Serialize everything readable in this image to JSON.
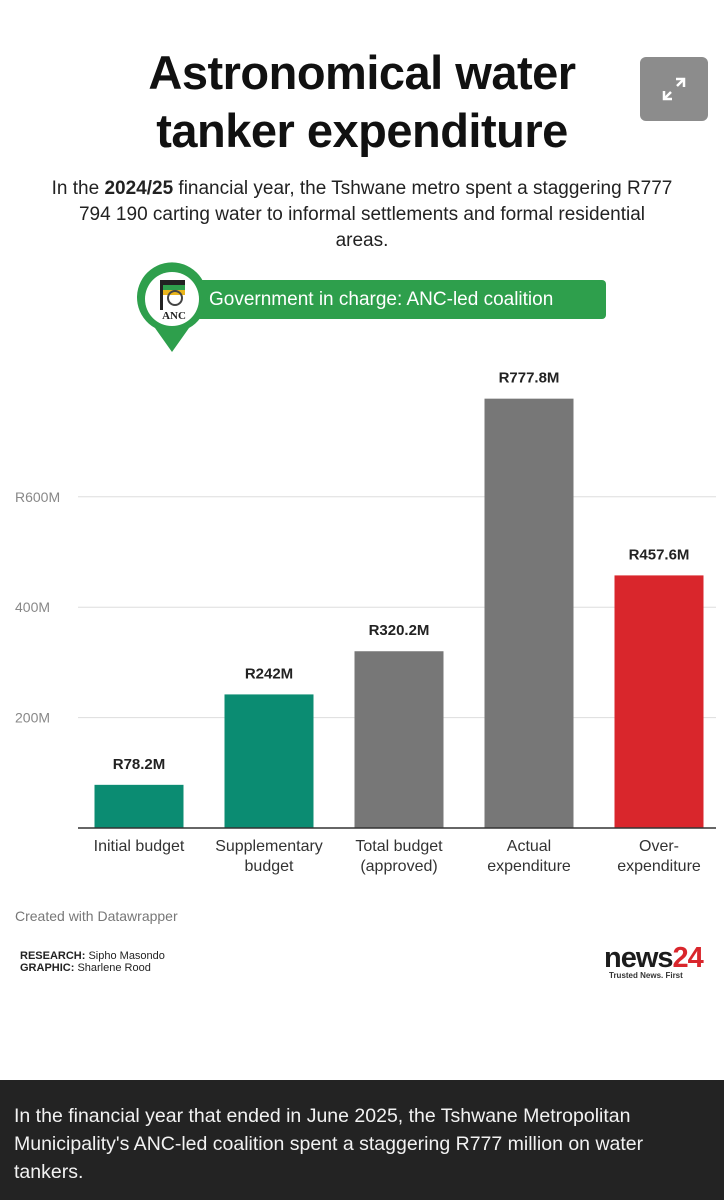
{
  "title_line1": "Astronomical water",
  "title_line2": "tanker expenditure",
  "subtitle": {
    "part1": "In the ",
    "bold": "2024/25",
    "part2": " financial year, the Tshwane metro spent a staggering R777 794 190 carting water to informal settlements and formal residential areas."
  },
  "government_label": "Government in charge: ANC-led coalition",
  "party_logo_text": "ANC",
  "icons": {
    "expand": "expand-arrows-icon",
    "party": "anc-logo-pin-icon"
  },
  "colors": {
    "green": "#0b8c72",
    "gray": "#777777",
    "red": "#d9262c",
    "pill_green": "#2e9f4c"
  },
  "chart_data": {
    "type": "bar",
    "categories": [
      [
        "Initial budget"
      ],
      [
        "Supplementary",
        "budget"
      ],
      [
        "Total budget",
        "(approved)"
      ],
      [
        "Actual",
        "expenditure"
      ],
      [
        "Over-",
        "expenditure"
      ]
    ],
    "values": [
      78.2,
      242,
      320.2,
      777.8,
      457.6
    ],
    "value_labels": [
      "R78.2M",
      "R242M",
      "R320.2M",
      "R777.8M",
      "R457.6M"
    ],
    "bar_colors": [
      "#0b8c72",
      "#0b8c72",
      "#777777",
      "#777777",
      "#d9262c"
    ],
    "yticks": [
      200,
      400,
      600
    ],
    "ytick_labels": [
      "200M",
      "400M",
      "R600M"
    ],
    "ylim": [
      0,
      800
    ],
    "grid": true
  },
  "credit": "Created with Datawrapper",
  "research_label": "RESEARCH:",
  "research_name": " Sipho Masondo",
  "graphic_label": "GRAPHIC:",
  "graphic_name": " Sharlene Rood",
  "logo": {
    "word": "news",
    "number": "24",
    "tagline": "Trusted News. First"
  },
  "caption": "In the financial year that ended in June 2025, the Tshwane Metropolitan Municipality's ANC-led coalition spent a staggering R777 million on water tankers."
}
